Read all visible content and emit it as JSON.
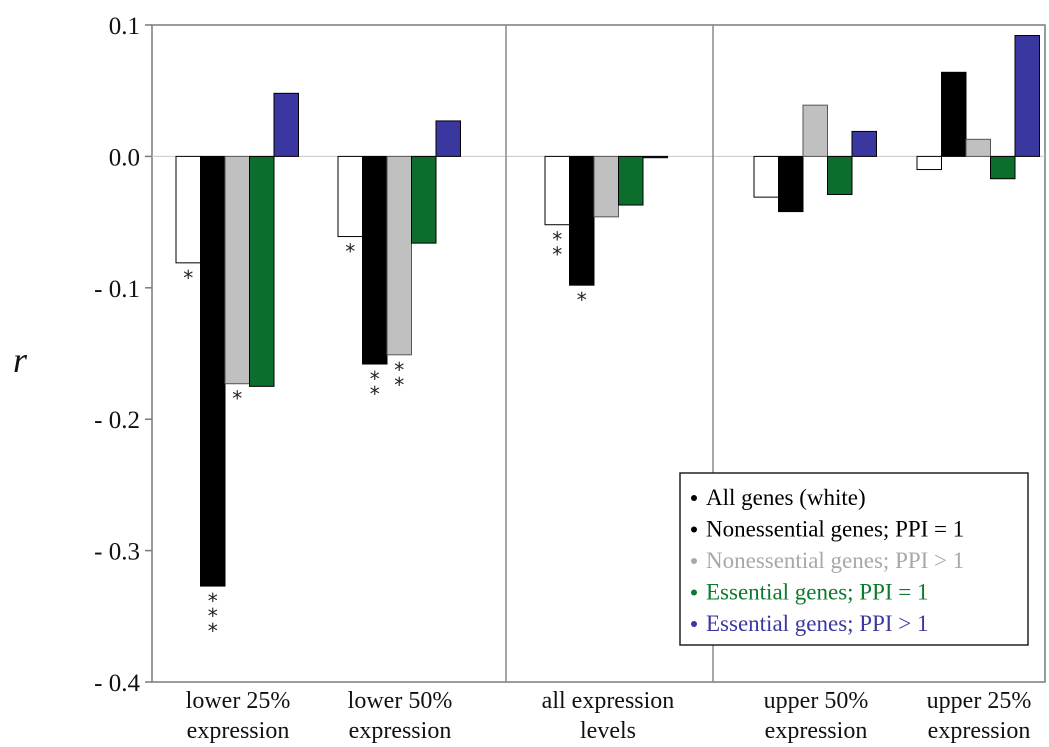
{
  "chart_data": {
    "type": "bar",
    "ylabel": "r",
    "xlabel": "",
    "ylim": [
      -0.4,
      0.1
    ],
    "yticks": [
      0.1,
      0.0,
      -0.1,
      -0.2,
      -0.3,
      -0.4
    ],
    "ytick_labels": [
      "0.1",
      "0.0",
      "- 0.1",
      "- 0.2",
      "- 0.3",
      "- 0.4"
    ],
    "categories": [
      [
        "lower 25%",
        "expression"
      ],
      [
        "lower 50%",
        "expression"
      ],
      [
        "all expression",
        "levels"
      ],
      [
        "upper 50%",
        "expression"
      ],
      [
        "upper 25%",
        "expression"
      ]
    ],
    "series": [
      {
        "name": "All genes (white)",
        "color": "#ffffff",
        "text_color": "#000000",
        "values": [
          -0.081,
          -0.061,
          -0.052,
          -0.031,
          -0.01
        ]
      },
      {
        "name": "Nonessential genes; PPI = 1",
        "color": "#000000",
        "text_color": "#000000",
        "values": [
          -0.327,
          -0.158,
          -0.098,
          -0.042,
          0.064
        ]
      },
      {
        "name": "Nonessential genes; PPI > 1",
        "color": "#c0c0c0",
        "text_color": "#a8a8a8",
        "values": [
          -0.173,
          -0.151,
          -0.046,
          0.039,
          0.013
        ]
      },
      {
        "name": "Essential genes; PPI = 1",
        "color": "#0c6e2c",
        "text_color": "#0c7a2c",
        "values": [
          -0.175,
          -0.066,
          -0.037,
          -0.029,
          -0.017
        ]
      },
      {
        "name": "Essential genes; PPI > 1",
        "color": "#3b37a0",
        "text_color": "#3b37a0",
        "values": [
          0.048,
          0.027,
          -0.001,
          0.019,
          0.092
        ]
      }
    ],
    "significance": [
      {
        "category": 0,
        "series": 0,
        "label": "*"
      },
      {
        "category": 0,
        "series": 1,
        "label": "***"
      },
      {
        "category": 0,
        "series": 2,
        "label": "*"
      },
      {
        "category": 1,
        "series": 0,
        "label": "*"
      },
      {
        "category": 1,
        "series": 1,
        "label": "**"
      },
      {
        "category": 1,
        "series": 2,
        "label": "**"
      },
      {
        "category": 2,
        "series": 0,
        "label": "**"
      },
      {
        "category": 2,
        "series": 1,
        "label": "*"
      }
    ],
    "legend_placement": "bottom-right",
    "grid": false,
    "group_separators_after": [
      1,
      2
    ]
  }
}
